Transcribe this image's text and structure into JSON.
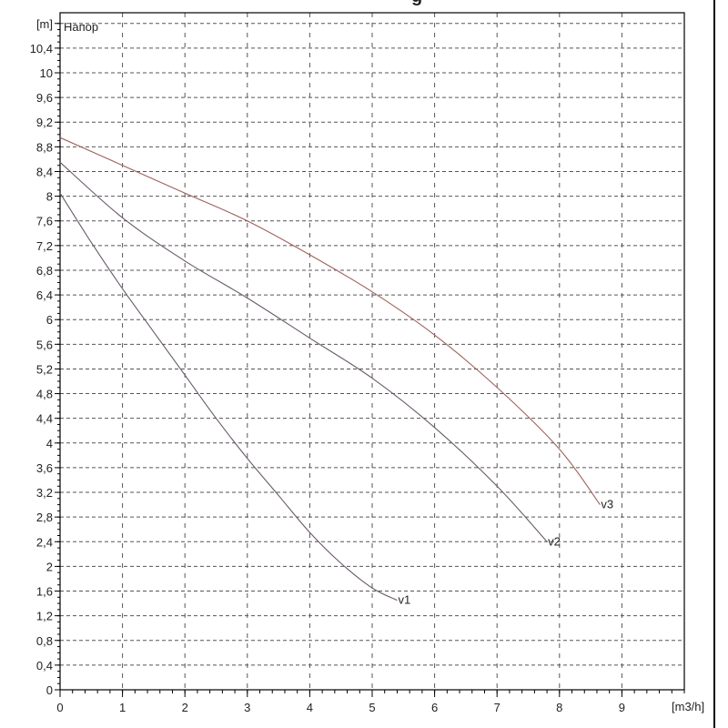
{
  "chart_data": {
    "type": "line",
    "title_fragment": "g",
    "xlabel": "[m3/h]",
    "ylabel": "[m]",
    "series_label": "Напор",
    "xlim": [
      0,
      10
    ],
    "ylim": [
      0,
      10.8
    ],
    "x_ticks": [
      "0",
      "1",
      "2",
      "3",
      "4",
      "5",
      "6",
      "7",
      "8",
      "9"
    ],
    "y_ticks": [
      "0",
      "0,4",
      "0,8",
      "1,2",
      "1,6",
      "2",
      "2,4",
      "2,8",
      "3,2",
      "3,6",
      "4",
      "4,4",
      "4,8",
      "5,2",
      "5,6",
      "6",
      "6,4",
      "6,8",
      "7,2",
      "7,6",
      "8",
      "8,4",
      "8,8",
      "9,2",
      "9,6",
      "10",
      "10,4"
    ],
    "grid": true,
    "series": [
      {
        "name": "v1",
        "color": "#6a5a6a",
        "x": [
          0,
          0.5,
          1,
          1.5,
          2,
          2.5,
          3,
          3.5,
          4,
          4.5,
          5,
          5.4
        ],
        "y": [
          8.05,
          7.25,
          6.5,
          5.8,
          5.1,
          4.4,
          3.75,
          3.15,
          2.55,
          2.05,
          1.65,
          1.45
        ]
      },
      {
        "name": "v2",
        "color": "#6a5a6a",
        "x": [
          0,
          1,
          2,
          3,
          4,
          5,
          6,
          7,
          7.8
        ],
        "y": [
          8.55,
          7.65,
          6.95,
          6.35,
          5.7,
          5.05,
          4.25,
          3.3,
          2.4
        ]
      },
      {
        "name": "v3",
        "color": "#a0605a",
        "x": [
          0,
          1,
          2,
          3,
          4,
          5,
          6,
          7,
          8,
          8.65
        ],
        "y": [
          8.95,
          8.5,
          8.05,
          7.6,
          7.05,
          6.45,
          5.75,
          4.9,
          3.9,
          3.0
        ]
      }
    ]
  }
}
